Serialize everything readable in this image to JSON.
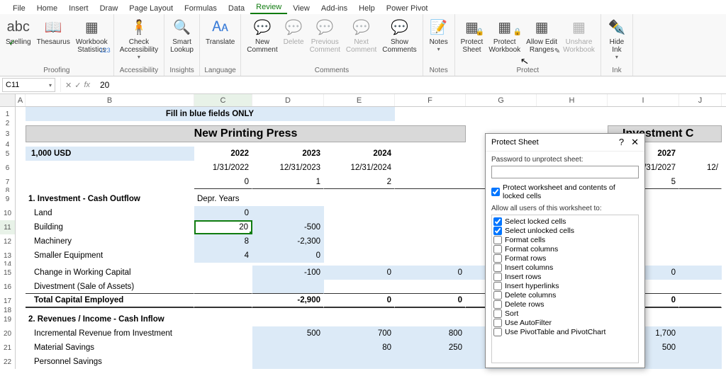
{
  "tabs": [
    "File",
    "Home",
    "Insert",
    "Draw",
    "Page Layout",
    "Formulas",
    "Data",
    "Review",
    "View",
    "Add-ins",
    "Help",
    "Power Pivot"
  ],
  "active_tab": "Review",
  "ribbon": {
    "proofing": {
      "label": "Proofing",
      "spelling": "Spelling",
      "thesaurus": "Thesaurus",
      "stats": "Workbook\nStatistics"
    },
    "accessibility": {
      "label": "Accessibility",
      "check": "Check\nAccessibility"
    },
    "insights": {
      "label": "Insights",
      "smart": "Smart\nLookup"
    },
    "language": {
      "label": "Language",
      "translate": "Translate"
    },
    "comments": {
      "label": "Comments",
      "new": "New\nComment",
      "delete": "Delete",
      "prev": "Previous\nComment",
      "next": "Next\nComment",
      "show": "Show\nComments"
    },
    "notes": {
      "label": "Notes",
      "notes": "Notes"
    },
    "protect": {
      "label": "Protect",
      "sheet": "Protect\nSheet",
      "workbook": "Protect\nWorkbook",
      "ranges": "Allow Edit\nRanges",
      "unshare": "Unshare\nWorkbook"
    },
    "ink": {
      "label": "Ink",
      "hide": "Hide\nInk"
    }
  },
  "namebox": "C11",
  "formula_value": "20",
  "columns": {
    "A": 14,
    "B": 238,
    "C": 82,
    "D": 101,
    "E": 100,
    "F": 100,
    "G": 100,
    "H": 100,
    "I": 101,
    "J": 60
  },
  "title_banner": "Fill in blue fields ONLY",
  "main_title": "New Printing Press",
  "inv_title": "Investment C",
  "r5_label": "1,000 USD",
  "years": {
    "c": "2022",
    "d": "2023",
    "e": "2024",
    "i": "2027"
  },
  "dates": {
    "c": "1/31/2022",
    "d": "12/31/2023",
    "e": "12/31/2024",
    "i": "12/31/2027",
    "j": "12/"
  },
  "idx": {
    "c": "0",
    "d": "1",
    "e": "2",
    "i": "5"
  },
  "section1": "1.  Investment - Cash Outflow",
  "depr_header": "Depr. Years",
  "r10_label": "Land",
  "r10_c": "0",
  "r11_label": "Building",
  "r11_c": "20",
  "r11_d": "-500",
  "r12_label": "Machinery",
  "r12_c": "8",
  "r12_d": "-2,300",
  "r13_label": "Smaller Equipment",
  "r13_c": "4",
  "r13_d": "0",
  "r15_label": "Change in Working Capital",
  "r15_d": "-100",
  "r15_e": "0",
  "r15_f": "0",
  "r15_i": "0",
  "r16_label": "Divestment (Sale of Assets)",
  "r17_label": "Total Capital Employed",
  "r17_d": "-2,900",
  "r17_e": "0",
  "r17_f": "0",
  "r17_i": "0",
  "section2": "2. Revenues / Income - Cash Inflow",
  "r20_label": "Incremental Revenue from Investment",
  "r20_d": "500",
  "r20_e": "700",
  "r20_f": "800",
  "r20_i": "1,700",
  "r21_label": "Material Savings",
  "r21_e": "80",
  "r21_f": "250",
  "r21_i": "500",
  "r22_label": "Personnel Savings",
  "dialog": {
    "title": "Protect Sheet",
    "pwd_label": "Password to unprotect sheet:",
    "protect_label": "Protect worksheet and contents of locked cells",
    "allow_label": "Allow all users of this worksheet to:",
    "perms": [
      {
        "label": "Select locked cells",
        "checked": true
      },
      {
        "label": "Select unlocked cells",
        "checked": true
      },
      {
        "label": "Format cells",
        "checked": false
      },
      {
        "label": "Format columns",
        "checked": false
      },
      {
        "label": "Format rows",
        "checked": false
      },
      {
        "label": "Insert columns",
        "checked": false
      },
      {
        "label": "Insert rows",
        "checked": false
      },
      {
        "label": "Insert hyperlinks",
        "checked": false
      },
      {
        "label": "Delete columns",
        "checked": false
      },
      {
        "label": "Delete rows",
        "checked": false
      },
      {
        "label": "Sort",
        "checked": false
      },
      {
        "label": "Use AutoFilter",
        "checked": false
      },
      {
        "label": "Use PivotTable and PivotChart",
        "checked": false
      }
    ]
  }
}
